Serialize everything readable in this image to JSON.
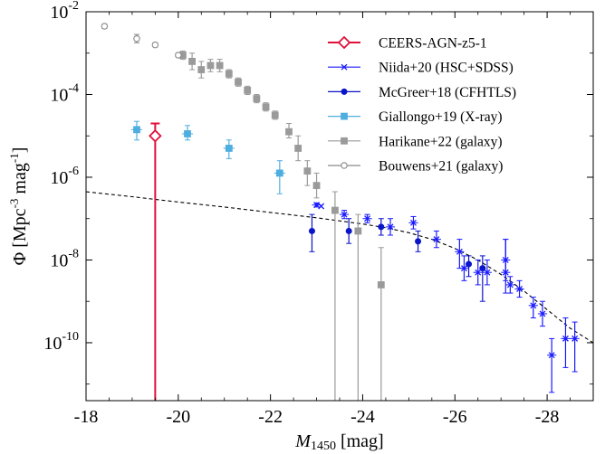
{
  "chart_data": {
    "type": "scatter",
    "title": "",
    "x_scale": "linear",
    "y_scale": "log",
    "xlim": [
      -18,
      -29
    ],
    "ylim_log10": [
      -11.4,
      -2
    ],
    "x_ticks": [
      {
        "v": -18,
        "label": "-18"
      },
      {
        "v": -20,
        "label": "-20"
      },
      {
        "v": -22,
        "label": "-22"
      },
      {
        "v": -24,
        "label": "-24"
      },
      {
        "v": -26,
        "label": "-26"
      },
      {
        "v": -28,
        "label": "-28"
      }
    ],
    "y_ticks": [
      {
        "p": -2,
        "base": "10",
        "exp": "-2"
      },
      {
        "p": -4,
        "base": "10",
        "exp": "-4"
      },
      {
        "p": -6,
        "base": "10",
        "exp": "-6"
      },
      {
        "p": -8,
        "base": "10",
        "exp": "-8"
      },
      {
        "p": -10,
        "base": "10",
        "exp": "-10"
      }
    ],
    "xlabel": {
      "main": "M",
      "sub": "1450",
      "unit": " [mag]"
    },
    "ylabel": {
      "a": "Φ [Mpc",
      "b": "-3",
      "c": " mag",
      "d": "-1",
      "e": "]"
    },
    "legend_position": "upper-right",
    "series": [
      {
        "name": "CEERS-AGN-z5-1",
        "color": "#e0103a",
        "marker": "diamond",
        "points": [
          {
            "x": -19.5,
            "logy": -5.0,
            "lo": -11.4,
            "hi": -4.7,
            "xerr": 0
          }
        ]
      },
      {
        "name": "Niida+20 (HSC+SDSS)",
        "color": "#1a1aff",
        "marker": "x",
        "points": [
          {
            "x": -23.1,
            "logy": -6.7,
            "lo": -6.7,
            "hi": -6.7,
            "xerr": 0
          },
          {
            "x": -23.0,
            "logy": -6.67,
            "lo": -6.72,
            "hi": -6.62,
            "xerr": 0.1
          },
          {
            "x": -23.6,
            "logy": -6.9,
            "lo": -7.0,
            "hi": -6.8,
            "xerr": 0.1
          },
          {
            "x": -24.1,
            "logy": -7.0,
            "lo": -7.1,
            "hi": -6.9,
            "xerr": 0.1
          },
          {
            "x": -24.6,
            "logy": -7.2,
            "lo": -7.4,
            "hi": -7.0,
            "xerr": 0.1
          },
          {
            "x": -25.1,
            "logy": -7.1,
            "lo": -7.25,
            "hi": -6.95,
            "xerr": 0.1
          },
          {
            "x": -25.6,
            "logy": -7.5,
            "lo": -7.7,
            "hi": -7.3,
            "xerr": 0.1
          },
          {
            "x": -26.1,
            "logy": -7.8,
            "lo": -8.2,
            "hi": -7.5,
            "xerr": 0.1
          },
          {
            "x": -26.2,
            "logy": -8.2,
            "lo": -8.5,
            "hi": -7.9,
            "xerr": 0.1
          },
          {
            "x": -26.5,
            "logy": -8.3,
            "lo": -8.6,
            "hi": -8.0,
            "xerr": 0.1
          },
          {
            "x": -26.7,
            "logy": -8.3,
            "lo": -8.6,
            "hi": -8.0,
            "xerr": 0.1
          },
          {
            "x": -27.1,
            "logy": -8.3,
            "lo": -8.8,
            "hi": -7.5,
            "xerr": 0.1
          },
          {
            "x": -27.1,
            "logy": -8.0,
            "lo": -8.5,
            "hi": -7.5,
            "xerr": 0.1
          },
          {
            "x": -27.2,
            "logy": -8.6,
            "lo": -8.8,
            "hi": -8.4,
            "xerr": 0.1
          },
          {
            "x": -27.4,
            "logy": -8.7,
            "lo": -8.9,
            "hi": -8.5,
            "xerr": 0.1
          },
          {
            "x": -27.7,
            "logy": -9.1,
            "lo": -9.4,
            "hi": -8.9,
            "xerr": 0.1
          },
          {
            "x": -27.9,
            "logy": -9.3,
            "lo": -9.6,
            "hi": -9.0,
            "xerr": 0.1
          },
          {
            "x": -28.1,
            "logy": -10.3,
            "lo": -11.2,
            "hi": -9.9,
            "xerr": 0.1
          },
          {
            "x": -28.4,
            "logy": -9.9,
            "lo": -10.6,
            "hi": -9.4,
            "xerr": 0.1
          },
          {
            "x": -28.6,
            "logy": -9.9,
            "lo": -10.7,
            "hi": -9.5,
            "xerr": 0.1
          }
        ]
      },
      {
        "name": "McGreer+18 (CFHTLS)",
        "color": "#0a14c8",
        "marker": "dot",
        "points": [
          {
            "x": -22.9,
            "logy": -7.3,
            "lo": -7.8,
            "hi": -6.9,
            "xerr": 0
          },
          {
            "x": -23.7,
            "logy": -7.3,
            "lo": -7.6,
            "hi": -7.0,
            "xerr": 0
          },
          {
            "x": -24.4,
            "logy": -7.2,
            "lo": -7.4,
            "hi": -7.0,
            "xerr": 0
          },
          {
            "x": -25.2,
            "logy": -7.55,
            "lo": -7.8,
            "hi": -7.3,
            "xerr": 0
          },
          {
            "x": -26.3,
            "logy": -8.1,
            "lo": -8.4,
            "hi": -7.9,
            "xerr": 0
          },
          {
            "x": -26.6,
            "logy": -8.2,
            "lo": -9.0,
            "hi": -7.9,
            "xerr": 0
          }
        ]
      },
      {
        "name": "Giallongo+19 (X-ray)",
        "color": "#4faee0",
        "marker": "square",
        "points": [
          {
            "x": -19.1,
            "logy": -4.85,
            "lo": -5.1,
            "hi": -4.65,
            "xerr": 0.12
          },
          {
            "x": -20.2,
            "logy": -4.95,
            "lo": -5.1,
            "hi": -4.75,
            "xerr": 0.12
          },
          {
            "x": -21.1,
            "logy": -5.3,
            "lo": -5.55,
            "hi": -5.1,
            "xerr": 0.12
          },
          {
            "x": -22.2,
            "logy": -5.9,
            "lo": -6.4,
            "hi": -5.6,
            "xerr": 0.12
          }
        ]
      },
      {
        "name": "Harikane+22 (galaxy)",
        "color": "#9a9a9a",
        "marker": "square",
        "points": [
          {
            "x": -20.1,
            "logy": -3.05,
            "lo": -3.15,
            "hi": -2.95,
            "xerr": 0
          },
          {
            "x": -20.3,
            "logy": -3.2,
            "lo": -3.4,
            "hi": -3.0,
            "xerr": 0
          },
          {
            "x": -20.5,
            "logy": -3.4,
            "lo": -3.6,
            "hi": -3.2,
            "xerr": 0
          },
          {
            "x": -20.7,
            "logy": -3.3,
            "lo": -3.45,
            "hi": -3.15,
            "xerr": 0
          },
          {
            "x": -20.9,
            "logy": -3.3,
            "lo": -3.45,
            "hi": -3.15,
            "xerr": 0
          },
          {
            "x": -21.1,
            "logy": -3.5,
            "lo": -3.6,
            "hi": -3.4,
            "xerr": 0
          },
          {
            "x": -21.3,
            "logy": -3.7,
            "lo": -3.8,
            "hi": -3.6,
            "xerr": 0
          },
          {
            "x": -21.5,
            "logy": -3.9,
            "lo": -4.0,
            "hi": -3.8,
            "xerr": 0
          },
          {
            "x": -21.7,
            "logy": -4.1,
            "lo": -4.2,
            "hi": -4.0,
            "xerr": 0
          },
          {
            "x": -21.9,
            "logy": -4.3,
            "lo": -4.4,
            "hi": -4.2,
            "xerr": 0
          },
          {
            "x": -22.1,
            "logy": -4.5,
            "lo": -4.6,
            "hi": -4.4,
            "xerr": 0
          },
          {
            "x": -22.4,
            "logy": -4.9,
            "lo": -5.05,
            "hi": -4.7,
            "xerr": 0
          },
          {
            "x": -22.6,
            "logy": -5.3,
            "lo": -5.6,
            "hi": -5.0,
            "xerr": 0
          },
          {
            "x": -22.8,
            "logy": -5.85,
            "lo": -6.2,
            "hi": -5.6,
            "xerr": 0
          },
          {
            "x": -23.0,
            "logy": -6.2,
            "lo": -6.5,
            "hi": -5.9,
            "xerr": 0
          },
          {
            "x": -23.4,
            "logy": -6.8,
            "lo": -11.4,
            "hi": -6.35,
            "xerr": 0
          },
          {
            "x": -23.9,
            "logy": -7.3,
            "lo": -11.4,
            "hi": -6.9,
            "xerr": 0
          },
          {
            "x": -24.4,
            "logy": -8.6,
            "lo": -11.4,
            "hi": -7.7,
            "xerr": 0
          }
        ]
      },
      {
        "name": "Bouwens+21 (galaxy)",
        "color": "#8a8a8a",
        "marker": "circle-open",
        "points": [
          {
            "x": -18.4,
            "logy": -2.35,
            "lo": -2.4,
            "hi": -2.3,
            "xerr": 0
          },
          {
            "x": -19.1,
            "logy": -2.65,
            "lo": -2.75,
            "hi": -2.55,
            "xerr": 0
          },
          {
            "x": -19.5,
            "logy": -2.8,
            "lo": -2.85,
            "hi": -2.75,
            "xerr": 0
          },
          {
            "x": -20.0,
            "logy": -3.05,
            "lo": -3.1,
            "hi": -3.0,
            "xerr": 0
          }
        ]
      }
    ],
    "fit_curve": {
      "style": "dashed",
      "color": "#000000",
      "points": [
        {
          "x": -18.0,
          "logy": -6.35
        },
        {
          "x": -19.0,
          "logy": -6.47
        },
        {
          "x": -20.0,
          "logy": -6.6
        },
        {
          "x": -21.0,
          "logy": -6.72
        },
        {
          "x": -22.0,
          "logy": -6.85
        },
        {
          "x": -23.0,
          "logy": -6.98
        },
        {
          "x": -24.0,
          "logy": -7.13
        },
        {
          "x": -24.5,
          "logy": -7.22
        },
        {
          "x": -25.0,
          "logy": -7.34
        },
        {
          "x": -25.5,
          "logy": -7.5
        },
        {
          "x": -26.0,
          "logy": -7.72
        },
        {
          "x": -26.5,
          "logy": -8.0
        },
        {
          "x": -27.0,
          "logy": -8.35
        },
        {
          "x": -27.5,
          "logy": -8.75
        },
        {
          "x": -28.0,
          "logy": -9.2
        },
        {
          "x": -28.5,
          "logy": -9.65
        },
        {
          "x": -29.0,
          "logy": -10.0
        }
      ]
    }
  }
}
